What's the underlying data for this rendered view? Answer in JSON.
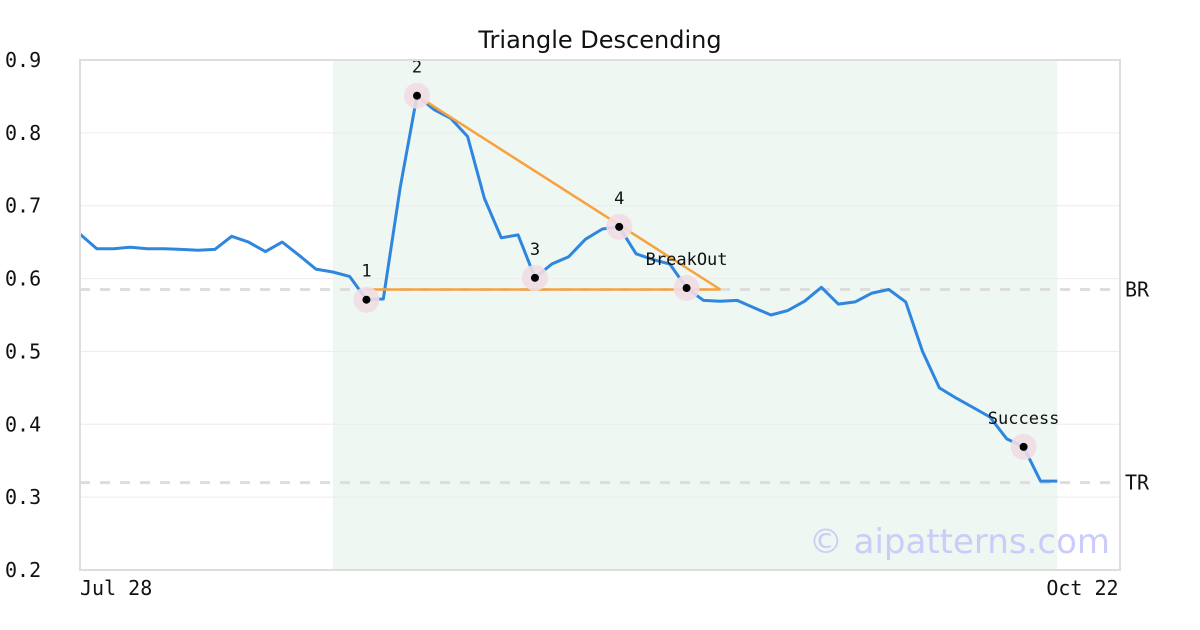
{
  "chart_data": {
    "type": "line",
    "title": "Triangle Descending",
    "xlabel": "",
    "ylabel": "",
    "ylim": [
      0.2,
      0.9
    ],
    "yticks": [
      "0.9",
      "0.8",
      "0.7",
      "0.6",
      "0.5",
      "0.4",
      "0.3",
      "0.2"
    ],
    "x_tick_labels": [
      {
        "label": "Jul 28",
        "index": 0
      },
      {
        "label": "Oct 22",
        "index": 57
      }
    ],
    "grid": true,
    "pattern_window": {
      "start_index": 15,
      "end_index": 58
    },
    "series": [
      {
        "color": "#2e86de",
        "values": [
          0.661,
          0.641,
          0.641,
          0.643,
          0.641,
          0.641,
          0.64,
          0.639,
          0.64,
          0.658,
          0.65,
          0.637,
          0.65,
          0.632,
          0.613,
          0.609,
          0.603,
          0.571,
          0.572,
          0.725,
          0.851,
          0.832,
          0.82,
          0.795,
          0.71,
          0.656,
          0.66,
          0.601,
          0.62,
          0.63,
          0.654,
          0.668,
          0.671,
          0.634,
          0.626,
          0.62,
          0.587,
          0.57,
          0.569,
          0.57,
          0.56,
          0.55,
          0.556,
          0.569,
          0.588,
          0.565,
          0.568,
          0.58,
          0.585,
          0.568,
          0.5,
          0.45,
          0.436,
          0.423,
          0.41,
          0.38,
          0.369,
          0.322,
          0.322
        ]
      }
    ],
    "pattern_points": [
      {
        "label": "1",
        "index": 17,
        "value": 0.571
      },
      {
        "label": "2",
        "index": 20,
        "value": 0.851
      },
      {
        "label": "3",
        "index": 27,
        "value": 0.601
      },
      {
        "label": "4",
        "index": 32,
        "value": 0.671
      },
      {
        "label": "BreakOut",
        "index": 36,
        "value": 0.587
      },
      {
        "label": "Success",
        "index": 56,
        "value": 0.369
      }
    ],
    "pattern_lines": [
      {
        "color": "#f7a23e",
        "points": [
          [
            17,
            0.585
          ],
          [
            38,
            0.585
          ]
        ]
      },
      {
        "color": "#f7a23e",
        "points": [
          [
            20,
            0.851
          ],
          [
            38,
            0.585
          ]
        ]
      }
    ],
    "reference_lines": [
      {
        "name": "BR",
        "value": 0.585
      },
      {
        "name": "TR",
        "value": 0.32
      }
    ],
    "watermark": "© aipatterns.com"
  }
}
